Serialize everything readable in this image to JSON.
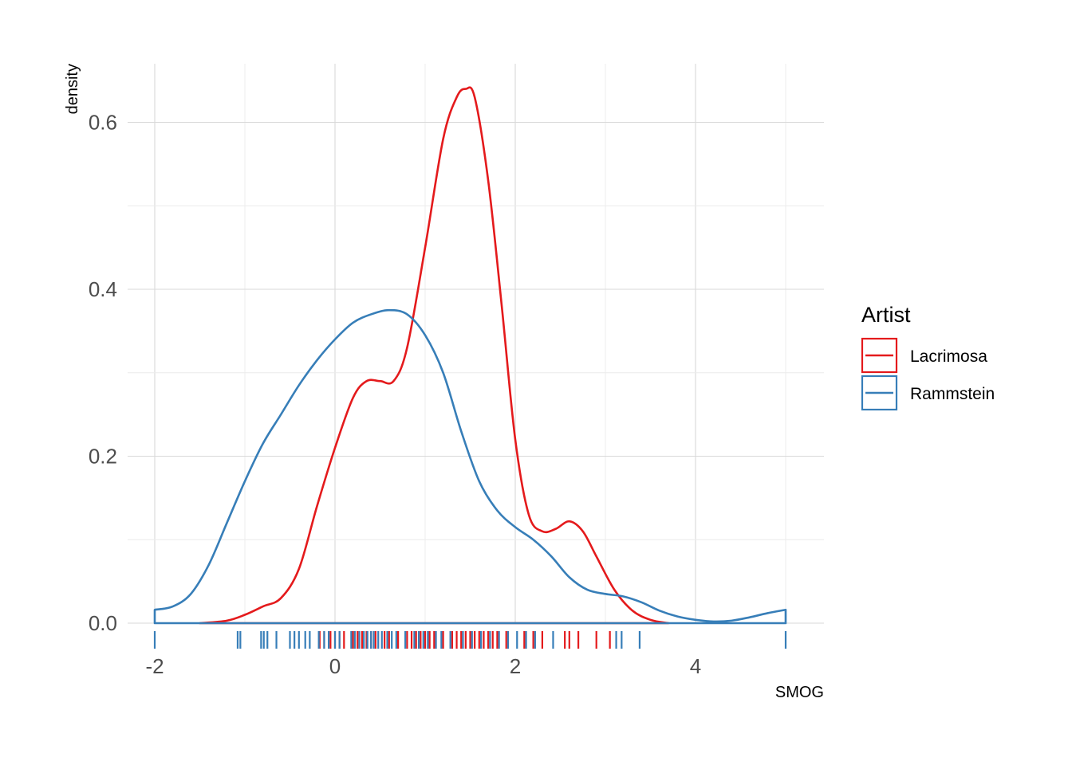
{
  "chart_data": {
    "type": "density",
    "xlabel": "SMOG",
    "ylabel": "density",
    "xlim": [
      -2.1,
      5.4
    ],
    "ylim": [
      0,
      0.67
    ],
    "x_ticks": [
      -2,
      0,
      2,
      4
    ],
    "x_tick_labels": [
      "-2",
      "0",
      "2",
      "4"
    ],
    "y_ticks": [
      0,
      0.2,
      0.4,
      0.6
    ],
    "y_tick_labels": [
      "0.0",
      "0.2",
      "0.4",
      "0.6"
    ],
    "grid": true,
    "legend": {
      "title": "Artist",
      "position": "right"
    },
    "series": [
      {
        "name": "Lacrimosa",
        "color": "#e41a1c",
        "curve": [
          [
            -1.5,
            0.0
          ],
          [
            -1.2,
            0.003
          ],
          [
            -1.0,
            0.01
          ],
          [
            -0.8,
            0.02
          ],
          [
            -0.6,
            0.03
          ],
          [
            -0.4,
            0.065
          ],
          [
            -0.2,
            0.14
          ],
          [
            0.0,
            0.21
          ],
          [
            0.2,
            0.27
          ],
          [
            0.35,
            0.29
          ],
          [
            0.5,
            0.29
          ],
          [
            0.65,
            0.29
          ],
          [
            0.8,
            0.33
          ],
          [
            1.0,
            0.45
          ],
          [
            1.2,
            0.58
          ],
          [
            1.35,
            0.63
          ],
          [
            1.45,
            0.64
          ],
          [
            1.55,
            0.63
          ],
          [
            1.7,
            0.53
          ],
          [
            1.85,
            0.38
          ],
          [
            2.0,
            0.22
          ],
          [
            2.15,
            0.13
          ],
          [
            2.3,
            0.11
          ],
          [
            2.45,
            0.113
          ],
          [
            2.6,
            0.122
          ],
          [
            2.75,
            0.11
          ],
          [
            2.9,
            0.08
          ],
          [
            3.1,
            0.04
          ],
          [
            3.3,
            0.015
          ],
          [
            3.5,
            0.004
          ],
          [
            3.7,
            0.0
          ]
        ],
        "rug": [
          -0.17,
          -0.12,
          -0.05,
          0.0,
          0.05,
          0.1,
          0.2,
          0.25,
          0.3,
          0.35,
          0.4,
          0.45,
          0.55,
          0.6,
          0.7,
          0.8,
          0.85,
          0.9,
          0.95,
          1.0,
          1.05,
          1.1,
          1.2,
          1.3,
          1.35,
          1.4,
          1.45,
          1.5,
          1.55,
          1.6,
          1.65,
          1.7,
          1.75,
          1.8,
          1.9,
          2.1,
          2.2,
          2.3,
          2.55,
          2.6,
          2.7,
          2.9,
          3.05
        ]
      },
      {
        "name": "Rammstein",
        "color": "#377eb8",
        "curve": [
          [
            -2.0,
            0.016
          ],
          [
            -1.8,
            0.02
          ],
          [
            -1.6,
            0.035
          ],
          [
            -1.4,
            0.07
          ],
          [
            -1.2,
            0.12
          ],
          [
            -1.0,
            0.17
          ],
          [
            -0.8,
            0.215
          ],
          [
            -0.6,
            0.25
          ],
          [
            -0.4,
            0.285
          ],
          [
            -0.2,
            0.315
          ],
          [
            0.0,
            0.34
          ],
          [
            0.2,
            0.36
          ],
          [
            0.4,
            0.37
          ],
          [
            0.6,
            0.375
          ],
          [
            0.8,
            0.37
          ],
          [
            1.0,
            0.345
          ],
          [
            1.2,
            0.3
          ],
          [
            1.4,
            0.23
          ],
          [
            1.6,
            0.17
          ],
          [
            1.8,
            0.135
          ],
          [
            2.0,
            0.115
          ],
          [
            2.2,
            0.1
          ],
          [
            2.4,
            0.08
          ],
          [
            2.6,
            0.055
          ],
          [
            2.8,
            0.04
          ],
          [
            3.0,
            0.035
          ],
          [
            3.2,
            0.032
          ],
          [
            3.4,
            0.025
          ],
          [
            3.6,
            0.015
          ],
          [
            3.8,
            0.008
          ],
          [
            4.0,
            0.004
          ],
          [
            4.2,
            0.002
          ],
          [
            4.4,
            0.003
          ],
          [
            4.6,
            0.007
          ],
          [
            4.8,
            0.012
          ],
          [
            5.0,
            0.016
          ]
        ],
        "rug": [
          -2.0,
          -1.08,
          -1.05,
          -0.82,
          -0.79,
          -0.75,
          -0.65,
          -0.5,
          -0.45,
          -0.4,
          -0.33,
          -0.28,
          -0.18,
          -0.12,
          -0.07,
          0.0,
          0.05,
          0.18,
          0.22,
          0.27,
          0.32,
          0.36,
          0.4,
          0.43,
          0.48,
          0.52,
          0.58,
          0.63,
          0.68,
          0.78,
          0.88,
          0.93,
          0.98,
          1.03,
          1.12,
          1.18,
          1.28,
          1.42,
          1.52,
          1.62,
          1.72,
          1.82,
          1.92,
          2.02,
          2.12,
          2.22,
          2.42,
          3.12,
          3.18,
          3.38,
          5.0
        ]
      }
    ]
  }
}
